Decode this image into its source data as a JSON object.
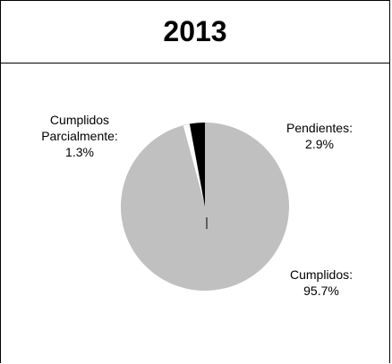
{
  "chart_data": {
    "type": "pie",
    "title": "2013",
    "slices": [
      {
        "label": "Cumplidos:",
        "value": 95.7,
        "value_label": "95.7%",
        "color": "#c0c0c0"
      },
      {
        "label": "Cumplidos Parcialmente:",
        "value": 1.3,
        "value_label": "1.3%",
        "color": "#ffffff"
      },
      {
        "label": "Pendientes:",
        "value": 2.9,
        "value_label": "2.9%",
        "color": "#000000"
      }
    ],
    "label_lines": {
      "cumplidos_parcialmente": [
        "Cumplidos",
        "Parcialmente:",
        "1.3%"
      ],
      "pendientes": [
        "Pendientes:",
        "2.9%"
      ],
      "cumplidos": [
        "Cumplidos:",
        "95.7%"
      ]
    }
  }
}
